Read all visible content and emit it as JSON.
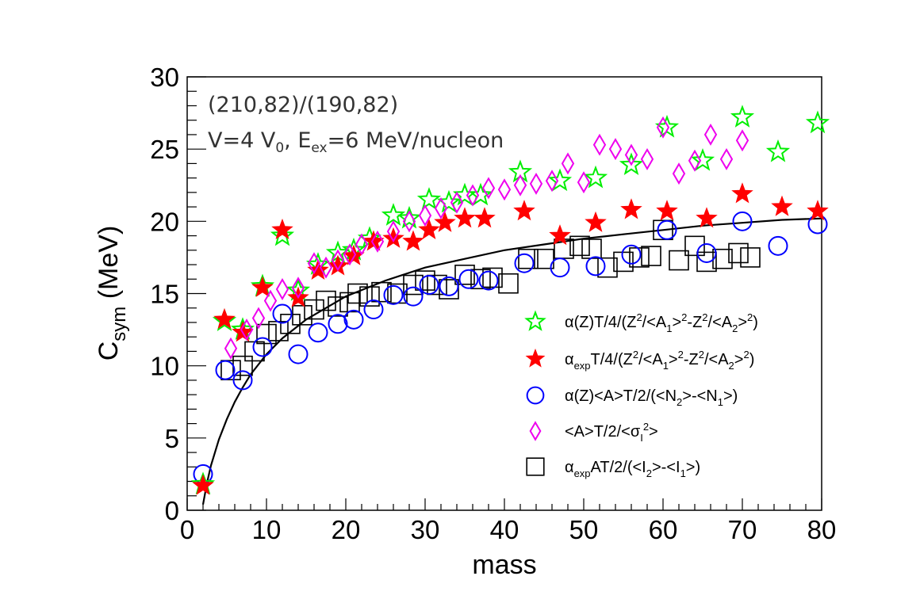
{
  "chart_data": {
    "type": "scatter",
    "title": "",
    "xlabel": "mass",
    "ylabel": {
      "main": "C",
      "sub": "sym",
      "unit": " (MeV)"
    },
    "xlim": [
      0,
      80
    ],
    "ylim": [
      0,
      30
    ],
    "x_ticks": [
      0,
      10,
      20,
      30,
      40,
      50,
      60,
      70,
      80
    ],
    "y_ticks": [
      0,
      5,
      10,
      15,
      20,
      25,
      30
    ],
    "grid": false,
    "legend_position": "right, below middle",
    "annotations": {
      "line1": "(210,82)/(190,82)",
      "line2_pre": "V=4 V",
      "line2_sub1": "0",
      "line2_mid": ", E",
      "line2_sub2": "ex",
      "line2_post": "=6 MeV/nucleon"
    },
    "fit_curve": {
      "name": "fit",
      "color": "#000000",
      "points": [
        [
          2,
          0.4
        ],
        [
          2.5,
          1.9
        ],
        [
          3,
          3.1
        ],
        [
          4,
          4.9
        ],
        [
          5,
          6.3
        ],
        [
          6,
          7.5
        ],
        [
          7,
          8.5
        ],
        [
          8,
          9.4
        ],
        [
          10,
          10.8
        ],
        [
          12,
          11.9
        ],
        [
          15,
          13.2
        ],
        [
          20,
          14.8
        ],
        [
          25,
          15.9
        ],
        [
          30,
          16.8
        ],
        [
          35,
          17.4
        ],
        [
          40,
          18.0
        ],
        [
          45,
          18.4
        ],
        [
          50,
          18.8
        ],
        [
          55,
          19.1
        ],
        [
          60,
          19.4
        ],
        [
          65,
          19.7
        ],
        [
          70,
          19.9
        ],
        [
          75,
          20.1
        ],
        [
          80,
          20.2
        ]
      ]
    },
    "series": [
      {
        "name": "alpha-Z-stars",
        "marker": "open-star",
        "color": "#00ee00",
        "legend": [
          "α(Z)T/4/(Z",
          "2",
          "/<A",
          "1",
          ">",
          "2",
          "-Z",
          "2",
          "/<A",
          "2",
          ">",
          "2",
          ")"
        ],
        "points": [
          [
            2,
            1.8
          ],
          [
            4.7,
            13.1
          ],
          [
            7,
            12.5
          ],
          [
            9.5,
            15.5
          ],
          [
            12,
            19
          ],
          [
            14,
            15.2
          ],
          [
            16.5,
            17
          ],
          [
            19,
            17.8
          ],
          [
            21,
            18
          ],
          [
            23,
            18.8
          ],
          [
            26,
            20.4
          ],
          [
            28,
            20.2
          ],
          [
            30.5,
            21.5
          ],
          [
            33,
            21.3
          ],
          [
            35,
            21.8
          ],
          [
            37,
            21.8
          ],
          [
            42,
            23.4
          ],
          [
            47,
            22.8
          ],
          [
            51.5,
            23
          ],
          [
            56,
            23.9
          ],
          [
            60.5,
            26.5
          ],
          [
            65,
            24.2
          ],
          [
            70,
            27.2
          ],
          [
            74.5,
            24.8
          ],
          [
            79.5,
            26.8
          ]
        ]
      },
      {
        "name": "alpha-exp-stars",
        "marker": "filled-star",
        "color": "#ff0000",
        "legend": [
          "α",
          "exp",
          "T/4/(Z",
          "2",
          "/<A",
          "1",
          ">",
          "2",
          "-Z",
          "2",
          "/<A",
          "2",
          ">",
          "2",
          ")"
        ],
        "points": [
          [
            2,
            1.7
          ],
          [
            4.7,
            13.2
          ],
          [
            7,
            12.3
          ],
          [
            9.5,
            15.4
          ],
          [
            12,
            19.4
          ],
          [
            14,
            14.7
          ],
          [
            16.5,
            16.6
          ],
          [
            19,
            16.9
          ],
          [
            21,
            17.6
          ],
          [
            23.5,
            18.6
          ],
          [
            26,
            18.8
          ],
          [
            28.5,
            18.6
          ],
          [
            30.5,
            19.4
          ],
          [
            32.5,
            19.9
          ],
          [
            35,
            20.2
          ],
          [
            37.5,
            20.2
          ],
          [
            42.5,
            20.7
          ],
          [
            47,
            19
          ],
          [
            51.5,
            19.9
          ],
          [
            56,
            20.8
          ],
          [
            60.5,
            20.7
          ],
          [
            65.5,
            20.2
          ],
          [
            70,
            21.9
          ],
          [
            75,
            21
          ],
          [
            79.5,
            20.7
          ]
        ]
      },
      {
        "name": "open-circles",
        "marker": "open-circle",
        "color": "#0000ff",
        "legend": [
          "α(Z)<A>T/2/(<N",
          "2",
          ">-<N",
          "1",
          ">)"
        ],
        "points": [
          [
            2,
            2.5
          ],
          [
            4.8,
            9.7
          ],
          [
            7,
            9
          ],
          [
            9.5,
            11.3
          ],
          [
            12,
            13.6
          ],
          [
            14,
            10.8
          ],
          [
            16.5,
            12.3
          ],
          [
            19,
            12.9
          ],
          [
            21,
            13.2
          ],
          [
            23.5,
            13.9
          ],
          [
            26,
            14.9
          ],
          [
            28.5,
            14.8
          ],
          [
            30.5,
            15.6
          ],
          [
            33,
            15.5
          ],
          [
            35.5,
            16
          ],
          [
            38,
            15.9
          ],
          [
            42.5,
            17.1
          ],
          [
            47,
            16.8
          ],
          [
            51.5,
            16.9
          ],
          [
            56,
            17.7
          ],
          [
            60.5,
            19.4
          ],
          [
            65.5,
            17.8
          ],
          [
            70,
            20
          ],
          [
            74.5,
            18.3
          ],
          [
            79.5,
            19.8
          ]
        ]
      },
      {
        "name": "open-diamonds",
        "marker": "open-diamond",
        "color": "#ee00ee",
        "legend": [
          "<A>T/2/<σ",
          "I",
          "2",
          ">"
        ],
        "points": [
          [
            5.5,
            11.2
          ],
          [
            7.5,
            12.5
          ],
          [
            9,
            13.3
          ],
          [
            10.5,
            14.5
          ],
          [
            12,
            15.3
          ],
          [
            14,
            15.4
          ],
          [
            16,
            17.1
          ],
          [
            17.5,
            16.8
          ],
          [
            19,
            17.3
          ],
          [
            20.5,
            17.7
          ],
          [
            22,
            18.4
          ],
          [
            24,
            18.6
          ],
          [
            26,
            19.3
          ],
          [
            28,
            20
          ],
          [
            30,
            20.4
          ],
          [
            32,
            20.9
          ],
          [
            34,
            21.3
          ],
          [
            36,
            21.8
          ],
          [
            38,
            22.3
          ],
          [
            40,
            22.2
          ],
          [
            42,
            22.5
          ],
          [
            44,
            22.6
          ],
          [
            46,
            22.8
          ],
          [
            48,
            24
          ],
          [
            50,
            22.7
          ],
          [
            52,
            25.3
          ],
          [
            54,
            25
          ],
          [
            56,
            24.6
          ],
          [
            58,
            24.3
          ],
          [
            60,
            26.5
          ],
          [
            62,
            23.3
          ],
          [
            64,
            24.2
          ],
          [
            66,
            26
          ],
          [
            68,
            24.3
          ],
          [
            70,
            25.6
          ]
        ]
      },
      {
        "name": "open-squares",
        "marker": "open-square",
        "color": "#000000",
        "legend": [
          "α",
          "exp",
          "AT/2/(<I",
          "2",
          ">-<I",
          "1",
          ">)"
        ],
        "points": [
          [
            5.5,
            9.7
          ],
          [
            7,
            10
          ],
          [
            8.5,
            11
          ],
          [
            10,
            12.2
          ],
          [
            11.5,
            12.4
          ],
          [
            13,
            12.9
          ],
          [
            14.5,
            13.5
          ],
          [
            16,
            13.9
          ],
          [
            17.5,
            14.5
          ],
          [
            19,
            14.1
          ],
          [
            20.5,
            14.4
          ],
          [
            21.5,
            15
          ],
          [
            23,
            14.8
          ],
          [
            24.5,
            15.1
          ],
          [
            26.5,
            15
          ],
          [
            28.5,
            15.6
          ],
          [
            30,
            15.9
          ],
          [
            31.5,
            15.6
          ],
          [
            33,
            15.3
          ],
          [
            35,
            16.3
          ],
          [
            37,
            16
          ],
          [
            38.5,
            16.1
          ],
          [
            40.5,
            15.7
          ],
          [
            43,
            17.4
          ],
          [
            45,
            17.4
          ],
          [
            47.5,
            18.1
          ],
          [
            49.5,
            18.3
          ],
          [
            51,
            18.1
          ],
          [
            53,
            16.8
          ],
          [
            55,
            17.2
          ],
          [
            57,
            17.5
          ],
          [
            58.5,
            17.6
          ],
          [
            60,
            19.4
          ],
          [
            62,
            17.3
          ],
          [
            64,
            18.3
          ],
          [
            65.5,
            17.2
          ],
          [
            67.5,
            17.4
          ],
          [
            69.5,
            17.8
          ],
          [
            71,
            17.5
          ]
        ]
      }
    ]
  }
}
